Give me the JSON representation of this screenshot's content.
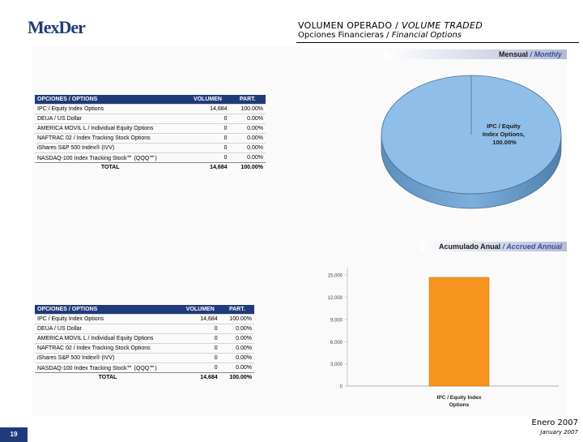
{
  "logo": {
    "text": "MexDer"
  },
  "header": {
    "title_es": "VOLUMEN OPERADO",
    "title_en": "VOLUME TRADED",
    "subtitle_es": "Opciones Financieras",
    "subtitle_en": "Financial Options"
  },
  "monthly": {
    "label_es": "Mensual",
    "label_en": "Monthly",
    "table": {
      "headers": [
        "OPCIONES / OPTIONS",
        "VOLUMEN",
        "PART."
      ],
      "rows": [
        {
          "name": "IPC / Equity Index Options",
          "volume": "14,684",
          "part": "100.00%"
        },
        {
          "name": "DEUA / US Dollar",
          "volume": "0",
          "part": "0.00%"
        },
        {
          "name": "AMERICA MOVIL L / Individual Equity Options",
          "volume": "0",
          "part": "0.00%"
        },
        {
          "name": "NAFTRAC 02 / Index Tracking Stock Options",
          "volume": "0",
          "part": "0.00%"
        },
        {
          "name": "iShares S&P 500 Index® (IVV)",
          "volume": "0",
          "part": "0.00%"
        },
        {
          "name": "NASDAQ-100 Index Tracking Stock℠ (QQQ℠)",
          "volume": "0",
          "part": "0.00%"
        }
      ],
      "total": {
        "label": "TOTAL",
        "volume": "14,684",
        "part": "100.00%"
      }
    }
  },
  "accrued": {
    "label_es": "Acumulado Anual",
    "label_en": "Accrued Annual",
    "table": {
      "headers": [
        "OPCIONES / OPTIONS",
        "VOLUMEN",
        "PART."
      ],
      "rows": [
        {
          "name": "IPC / Equity Index Options",
          "volume": "14,684",
          "part": "100.00%"
        },
        {
          "name": "DEUA / US Dollar",
          "volume": "0",
          "part": "0.00%"
        },
        {
          "name": "AMERICA MOVIL L / Individual Equity Options",
          "volume": "0",
          "part": "0.00%"
        },
        {
          "name": "NAFTRAC 02 / Index Tracking Stock Options",
          "volume": "0",
          "part": "0.00%"
        },
        {
          "name": "iShares S&P 500 Index® (IVV)",
          "volume": "0",
          "part": "0.00%"
        },
        {
          "name": "NASDAQ-100 Index Tracking Stock℠ (QQQ℠)",
          "volume": "0",
          "part": "0.00%"
        }
      ],
      "total": {
        "label": "TOTAL",
        "volume": "14,684",
        "part": "100.00%"
      }
    }
  },
  "chart_data": [
    {
      "type": "pie",
      "labels": [
        "IPC / Equity Index Options"
      ],
      "values": [
        100.0
      ],
      "slice_label": "IPC / Equity Index Options, 100.00%",
      "colors": [
        "#8fbfe8"
      ]
    },
    {
      "type": "bar",
      "categories": [
        "IPC / Equity Index Options"
      ],
      "values": [
        14684
      ],
      "ylim": [
        0,
        16000
      ],
      "yticks": [
        "0",
        "3,000",
        "6,000",
        "9,000",
        "12,000",
        "15,000"
      ],
      "ytick_values": [
        0,
        3000,
        6000,
        9000,
        12000,
        15000
      ],
      "colors": [
        "#f7941d"
      ]
    }
  ],
  "footer": {
    "page": "19",
    "date_es": "Enero 2007",
    "date_en": "January 2007"
  },
  "colors": {
    "brand": "#1f3b7a",
    "pie": "#8fbfe8",
    "bar": "#f7941d"
  }
}
